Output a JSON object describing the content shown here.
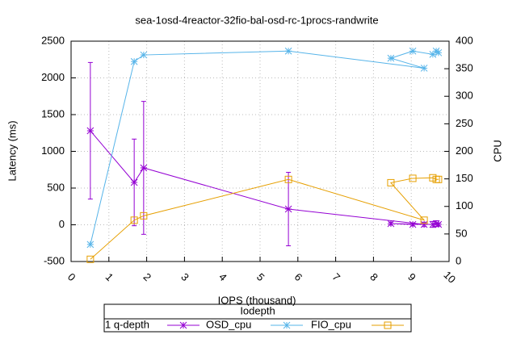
{
  "chart_data": {
    "type": "line",
    "title": "sea-1osd-4reactor-32fio-bal-osd-rc-1procs-randwrite",
    "x_label": "IOPS (thousand)",
    "y_label": "Latency (ms)",
    "y2_label": "CPU",
    "legend_title": "Iodepth",
    "x": [
      0.51,
      1.67,
      1.92,
      5.75,
      9.34,
      8.46,
      9.04,
      9.57,
      9.66,
      9.72
    ],
    "series": [
      {
        "name": "1 q-depth",
        "color": "#9400d3",
        "marker": "plus",
        "axis": "y",
        "values": [
          1280,
          577,
          775,
          214,
          5,
          16,
          5,
          5,
          16,
          5
        ],
        "errors": [
          930,
          590,
          905,
          500,
          30,
          20,
          20,
          40,
          40,
          20
        ]
      },
      {
        "name": "OSD_cpu",
        "color": "#56b4e9",
        "marker": "star",
        "axis": "y2",
        "values": [
          31,
          363,
          375,
          382,
          351,
          369,
          382,
          376,
          382,
          379
        ]
      },
      {
        "name": "FIO_cpu",
        "color": "#e69f00",
        "marker": "square",
        "axis": "y2",
        "values": [
          4,
          75,
          83,
          149,
          75,
          143,
          151,
          152,
          149,
          149
        ]
      }
    ],
    "xlim": [
      0,
      10
    ],
    "xticks": [
      0,
      1,
      2,
      3,
      4,
      5,
      6,
      7,
      8,
      9,
      10
    ],
    "ylim": [
      -500,
      2500
    ],
    "yticks": [
      -500,
      0,
      500,
      1000,
      1500,
      2000,
      2500
    ],
    "y2lim": [
      0,
      400
    ],
    "y2ticks": [
      0,
      50,
      100,
      150,
      200,
      250,
      300,
      350,
      400
    ],
    "grid": true
  }
}
